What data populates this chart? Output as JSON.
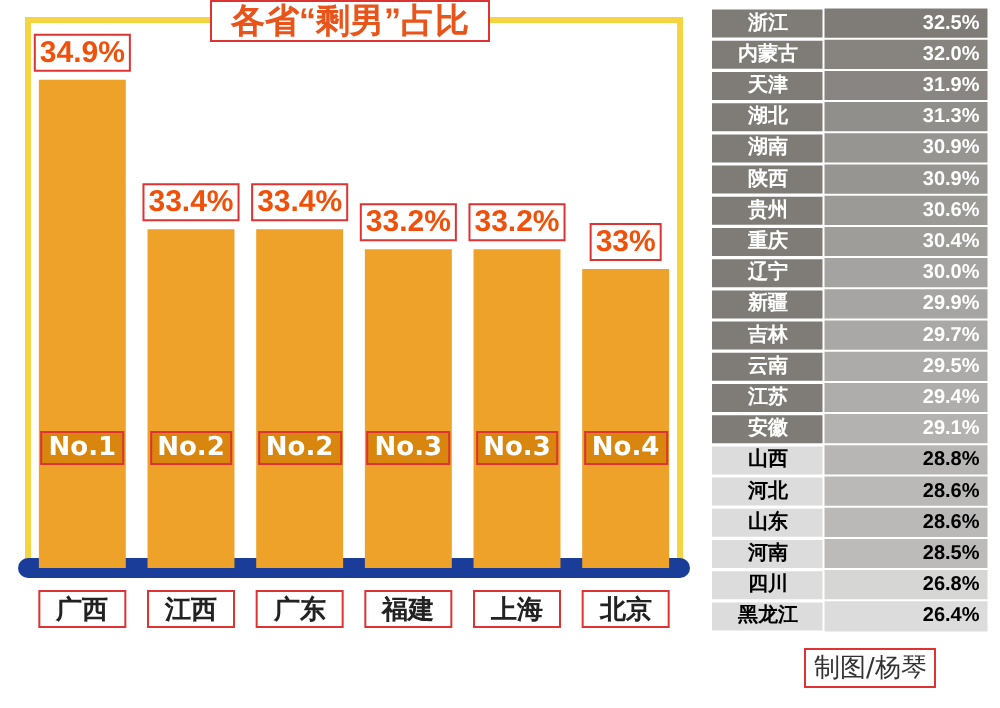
{
  "chart_data": [
    {
      "type": "bar",
      "title": "各省“剩男”占比",
      "categories": [
        "广西",
        "江西",
        "广东",
        "福建",
        "上海",
        "北京"
      ],
      "values": [
        34.9,
        33.4,
        33.4,
        33.2,
        33.2,
        33
      ],
      "value_labels": [
        "34.9%",
        "33.4%",
        "33.4%",
        "33.2%",
        "33.2%",
        "33%"
      ],
      "color": "#eea22a",
      "ylim": [
        30,
        35.5
      ],
      "tick_labels": "x",
      "annotations": [
        {
          "text": "No.1",
          "x": "广西"
        },
        {
          "text": "No.2",
          "x": "江西"
        },
        {
          "text": "No.2",
          "x": "广东"
        },
        {
          "text": "No.3",
          "x": "福建"
        },
        {
          "text": "No.3",
          "x": "上海"
        },
        {
          "text": "No.4",
          "x": "北京"
        }
      ]
    },
    {
      "type": "heatmap",
      "categories": [
        null
      ],
      "y_categories": [
        "浙江",
        "内蒙古",
        "天津",
        "湖北",
        "湖南",
        "陕西",
        "贵州",
        "重庆",
        "辽宁",
        "新疆",
        "吉林",
        "云南",
        "江苏",
        "安徽",
        "山西",
        "河北",
        "山东",
        "河南",
        "四川",
        "黑龙江"
      ],
      "cells": [
        [
          32.5
        ],
        [
          32.0
        ],
        [
          31.9
        ],
        [
          31.3
        ],
        [
          30.9
        ],
        [
          30.9
        ],
        [
          30.6
        ],
        [
          30.4
        ],
        [
          30.0
        ],
        [
          29.9
        ],
        [
          29.7
        ],
        [
          29.5
        ],
        [
          29.4
        ],
        [
          29.1
        ],
        [
          28.8
        ],
        [
          28.6
        ],
        [
          28.6
        ],
        [
          28.5
        ],
        [
          26.8
        ],
        [
          26.4
        ]
      ],
      "cell_labels": [
        [
          "32.5%"
        ],
        [
          "32.0%"
        ],
        [
          "31.9%"
        ],
        [
          "31.3%"
        ],
        [
          "30.9%"
        ],
        [
          "30.9%"
        ],
        [
          "30.6%"
        ],
        [
          "30.4%"
        ],
        [
          "30.0%"
        ],
        [
          "29.9%"
        ],
        [
          "29.7%"
        ],
        [
          "29.5%"
        ],
        [
          "29.4%"
        ],
        [
          "29.1%"
        ],
        [
          "28.8%"
        ],
        [
          "28.6%"
        ],
        [
          "28.6%"
        ],
        [
          "28.5%"
        ],
        [
          "26.8%"
        ],
        [
          "26.4%"
        ]
      ],
      "colors": [
        "#7f7c78",
        "#7f7c78",
        "#7f7c78",
        "#7f7c78",
        "#7f7c78",
        "#7f7c78",
        "#7f7c78",
        "#7f7c78",
        "#7f7c78",
        "#7f7c78",
        "#7f7c78",
        "#7f7c78",
        "#7f7c78",
        "#7f7c78",
        "#dcdcdc",
        "#dcdcdc",
        "#dcdcdc",
        "#dcdcdc",
        "#dcdcdc",
        "#dcdcdc"
      ],
      "annotations": [
        "制图/杨琴"
      ]
    }
  ]
}
